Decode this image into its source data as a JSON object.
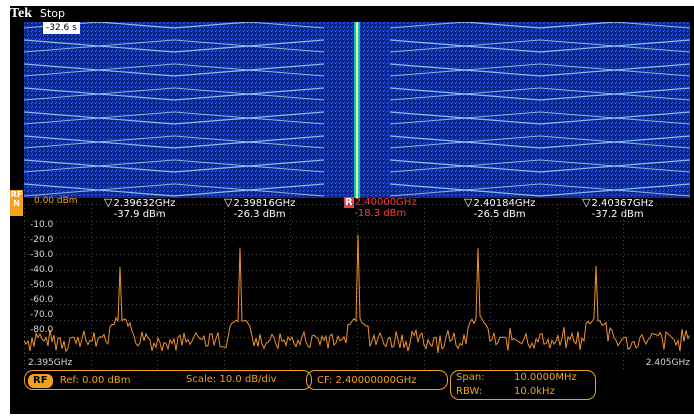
{
  "brand": "Tek",
  "acq_state": "Stop",
  "spectrogram_time": "-32.6 s",
  "rf_badge": "RF\nN",
  "ref_level": "0.00 dBm",
  "y_axis_labels": [
    "-10.0",
    "-20.0",
    "-30.0",
    "-40.0",
    "-50.0",
    "-60.0",
    "-70.0",
    "-80.0"
  ],
  "x_start": "2.395GHz",
  "x_end": "2.405GHz",
  "markers": [
    {
      "freq": "2.39632GHz",
      "level": "-37.9 dBm",
      "ref": false
    },
    {
      "freq": "2.39816GHz",
      "level": "-26.3 dBm",
      "ref": false
    },
    {
      "freq": "2.40000GHz",
      "level": "-18.3 dBm",
      "ref": true
    },
    {
      "freq": "2.40184GHz",
      "level": "-26.5 dBm",
      "ref": false
    },
    {
      "freq": "2.40367GHz",
      "level": "-37.2 dBm",
      "ref": false
    }
  ],
  "ref_marker_symbol": "R",
  "status": {
    "rf_label": "RF",
    "ref": "Ref: 0.00 dBm",
    "scale": "Scale: 10.0 dB/div",
    "cf": "CF:   2.40000000GHz",
    "span_label": "Span:",
    "span_value": "10.0000MHz",
    "rbw_label": "RBW:",
    "rbw_value": "10.0kHz"
  },
  "colors": {
    "accent": "#f3a21d",
    "reference": "#ff3b3b",
    "spectrogram_bg": "#0b2aa0",
    "trace": "#f0922b"
  }
}
